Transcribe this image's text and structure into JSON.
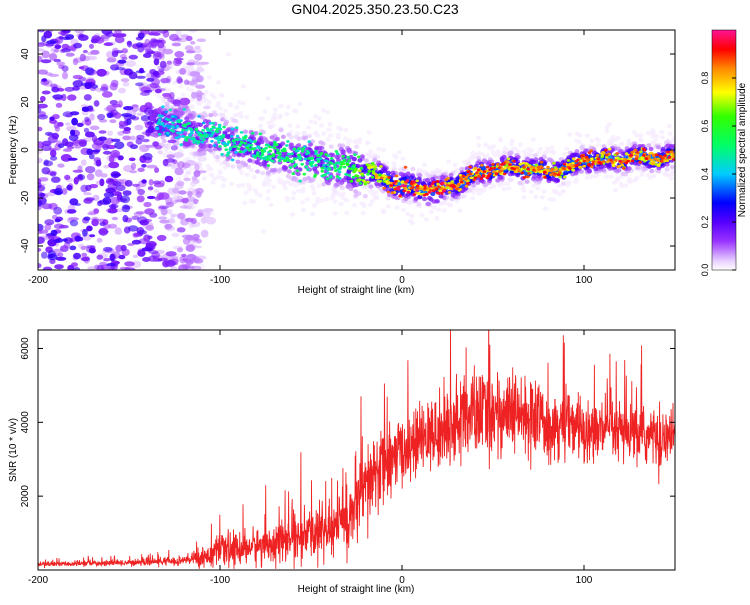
{
  "title": "GN04.2025.350.23.50.C23",
  "colors": {
    "line": "#ee2222",
    "axis": "#000000",
    "background": "#ffffff",
    "colormap": [
      "#f0f0f0",
      "#cc99ff",
      "#7a00ff",
      "#0000ff",
      "#00ddff",
      "#00ff33",
      "#ffff00",
      "#ff8800",
      "#ff0000",
      "#ff1493"
    ]
  },
  "chart_data": [
    {
      "type": "heatmap",
      "name": "spectrogram",
      "xlabel": "Height of straight line (km)",
      "ylabel": "Frequency (Hz)",
      "xlim": [
        -200,
        150
      ],
      "ylim": [
        -50,
        50
      ],
      "xticks": [
        -200,
        -100,
        0,
        100
      ],
      "yticks": [
        -40,
        -20,
        0,
        20,
        40
      ],
      "grid": false,
      "ridge": {
        "description_x": [
          -130,
          -120,
          -100,
          -80,
          -60,
          -40,
          -30,
          -20,
          -10,
          0,
          10,
          20,
          30,
          40,
          50,
          60,
          70,
          80,
          90,
          100,
          110,
          120,
          130,
          140,
          150
        ],
        "frequency_hz": [
          12,
          9,
          5,
          0,
          -3,
          -6,
          -8,
          -9,
          -12,
          -15,
          -16,
          -17,
          -14,
          -10,
          -8,
          -7,
          -8,
          -9,
          -8,
          -4,
          -4,
          -4,
          -3,
          -3,
          -3
        ],
        "peak_amplitude": [
          0.45,
          0.5,
          0.5,
          0.55,
          0.55,
          0.55,
          0.6,
          0.7,
          0.85,
          0.95,
          0.95,
          0.95,
          0.9,
          0.9,
          0.9,
          0.9,
          0.9,
          0.9,
          0.9,
          0.9,
          0.9,
          0.9,
          0.9,
          0.9,
          0.9
        ]
      },
      "noise_region_x": [
        -200,
        -110
      ]
    },
    {
      "type": "colorbar",
      "name": "amplitude-colorbar",
      "label": "Normalized spectral amplitude",
      "range": [
        0,
        1
      ],
      "ticks": [
        "0.0",
        "0.2",
        "0.4",
        "0.6",
        "0.8"
      ],
      "tick_values": [
        0.0,
        0.2,
        0.4,
        0.6,
        0.8
      ]
    },
    {
      "type": "line",
      "name": "snr-trace",
      "xlabel": "Height of straight line (km)",
      "ylabel": "SNR (10 * v/v)",
      "xlim": [
        -200,
        150
      ],
      "ylim": [
        0,
        6500
      ],
      "xticks": [
        -200,
        -100,
        0,
        100
      ],
      "yticks": [
        2000,
        4000,
        6000
      ],
      "grid": false,
      "series": [
        {
          "name": "SNR",
          "envelope_x": [
            -200,
            -150,
            -120,
            -110,
            -100,
            -80,
            -60,
            -40,
            -30,
            -20,
            -15,
            -10,
            0,
            10,
            20,
            30,
            40,
            50,
            60,
            70,
            80,
            90,
            100,
            110,
            120,
            130,
            140,
            150
          ],
          "envelope_mean": [
            150,
            200,
            250,
            350,
            500,
            650,
            850,
            1100,
            1400,
            2100,
            2600,
            2900,
            3200,
            3500,
            3700,
            4000,
            4200,
            4300,
            4200,
            4100,
            4000,
            3900,
            3800,
            3750,
            3700,
            3650,
            3600,
            3600
          ],
          "envelope_spread": [
            60,
            80,
            120,
            250,
            400,
            450,
            550,
            700,
            900,
            1100,
            1100,
            1000,
            800,
            800,
            900,
            1000,
            1100,
            1100,
            1000,
            950,
            900,
            850,
            800,
            800,
            750,
            750,
            700,
            700
          ]
        }
      ]
    }
  ]
}
